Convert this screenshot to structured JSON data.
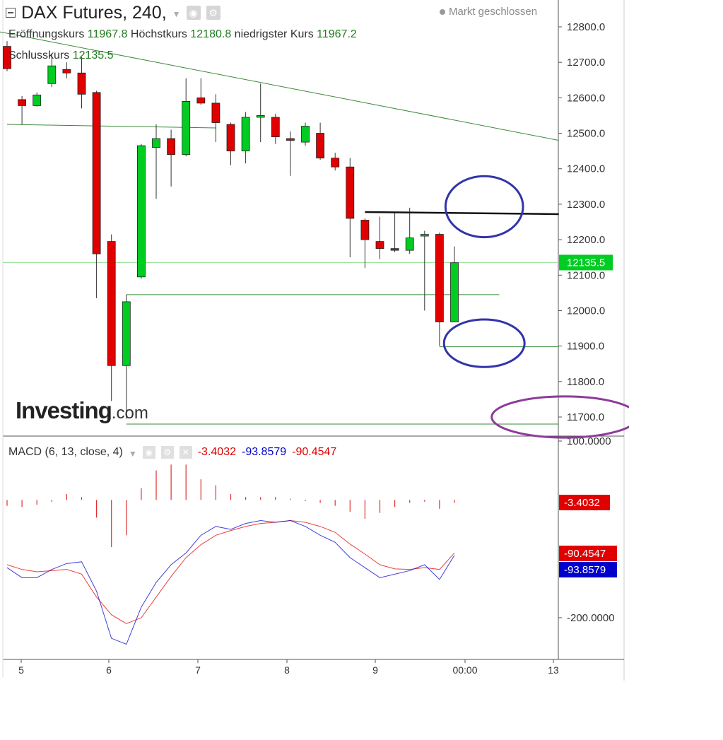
{
  "header": {
    "symbol_title": "DAX Futures, 240,",
    "market_status": "Markt geschlossen",
    "open_label": "Eröffnungskurs",
    "open_value": "11967.8",
    "high_label": "Höchstkurs",
    "high_value": "12180.8",
    "low_label": "niedrigster Kurs",
    "low_value": "11967.2",
    "close_label": "Schlusskurs",
    "close_value": "12135.5"
  },
  "macd_header": {
    "label": "MACD (6, 13, close, 4)",
    "value_1": "-3.4032",
    "value_2": "-93.8579",
    "value_3": "-90.4547"
  },
  "logo": {
    "text": "Investing",
    "suffix": ".com"
  },
  "icons": [
    "collapse-icon",
    "chevron-down-icon",
    "eye-icon",
    "gear-icon",
    "close-icon"
  ],
  "colors": {
    "up": "#00cc22",
    "down": "#e00000",
    "price_badge": "#00cc22",
    "macd_line": "#0000cc",
    "signal_line": "#e00000",
    "trendline": "#3a8a3a",
    "annotation_blue": "#3333aa",
    "annotation_purple": "#8e3b9b"
  },
  "chart_data": [
    {
      "type": "candlestick",
      "title": "DAX Futures, 240,",
      "x_ticks": [
        "5",
        "6",
        "7",
        "8",
        "9",
        "00:00",
        "13"
      ],
      "y_ticks": [
        "12800.0",
        "12700.0",
        "12600.0",
        "12500.0",
        "12400.0",
        "12300.0",
        "12200.0",
        "12100.0",
        "12000.0",
        "11900.0",
        "11800.0",
        "11700.0"
      ],
      "ylim": [
        11640,
        12830
      ],
      "last_price_label": "12135.5",
      "last_price": 12135.5,
      "candles": [
        {
          "x": 0.0,
          "o": 12745,
          "h": 12760,
          "l": 12675,
          "c": 12682
        },
        {
          "x": 1.0,
          "o": 12595,
          "h": 12605,
          "l": 12525,
          "c": 12578
        },
        {
          "x": 2.0,
          "o": 12578,
          "h": 12615,
          "l": 12575,
          "c": 12608
        },
        {
          "x": 3.0,
          "o": 12640,
          "h": 12725,
          "l": 12630,
          "c": 12690
        },
        {
          "x": 4.0,
          "o": 12680,
          "h": 12700,
          "l": 12655,
          "c": 12670
        },
        {
          "x": 5.0,
          "o": 12670,
          "h": 12715,
          "l": 12570,
          "c": 12610
        },
        {
          "x": 6.0,
          "o": 12615,
          "h": 12620,
          "l": 12035,
          "c": 12160
        },
        {
          "x": 7.0,
          "o": 12195,
          "h": 12215,
          "l": 11745,
          "c": 11845
        },
        {
          "x": 8.0,
          "o": 11845,
          "h": 12045,
          "l": 11695,
          "c": 12025
        },
        {
          "x": 9.0,
          "o": 12095,
          "h": 12470,
          "l": 12090,
          "c": 12465
        },
        {
          "x": 10.0,
          "o": 12460,
          "h": 12525,
          "l": 12315,
          "c": 12485
        },
        {
          "x": 11.0,
          "o": 12485,
          "h": 12510,
          "l": 12350,
          "c": 12440
        },
        {
          "x": 12.0,
          "o": 12440,
          "h": 12655,
          "l": 12435,
          "c": 12590
        },
        {
          "x": 13.0,
          "o": 12600,
          "h": 12655,
          "l": 12580,
          "c": 12585
        },
        {
          "x": 14.0,
          "o": 12585,
          "h": 12610,
          "l": 12475,
          "c": 12530
        },
        {
          "x": 15.0,
          "o": 12525,
          "h": 12530,
          "l": 12410,
          "c": 12450
        },
        {
          "x": 16.0,
          "o": 12450,
          "h": 12560,
          "l": 12415,
          "c": 12545
        },
        {
          "x": 17.0,
          "o": 12545,
          "h": 12640,
          "l": 12475,
          "c": 12550
        },
        {
          "x": 18.0,
          "o": 12545,
          "h": 12555,
          "l": 12470,
          "c": 12490
        },
        {
          "x": 19.0,
          "o": 12485,
          "h": 12505,
          "l": 12380,
          "c": 12480
        },
        {
          "x": 20.0,
          "o": 12475,
          "h": 12530,
          "l": 12465,
          "c": 12520
        },
        {
          "x": 21.0,
          "o": 12500,
          "h": 12530,
          "l": 12425,
          "c": 12430
        },
        {
          "x": 22.0,
          "o": 12430,
          "h": 12445,
          "l": 12395,
          "c": 12405
        },
        {
          "x": 23.0,
          "o": 12405,
          "h": 12430,
          "l": 12150,
          "c": 12260
        },
        {
          "x": 24.0,
          "o": 12255,
          "h": 12260,
          "l": 12120,
          "c": 12200
        },
        {
          "x": 25.0,
          "o": 12195,
          "h": 12265,
          "l": 12145,
          "c": 12175
        },
        {
          "x": 26.0,
          "o": 12175,
          "h": 12275,
          "l": 12165,
          "c": 12170
        },
        {
          "x": 27.0,
          "o": 12170,
          "h": 12290,
          "l": 12160,
          "c": 12205
        },
        {
          "x": 28.0,
          "o": 12210,
          "h": 12225,
          "l": 12000,
          "c": 12215
        },
        {
          "x": 29.0,
          "o": 12215,
          "h": 12220,
          "l": 11900,
          "c": 11968
        },
        {
          "x": 30.0,
          "o": 11968,
          "h": 12181,
          "l": 11967,
          "c": 12135
        }
      ],
      "annotations": {
        "trend_lines": [
          {
            "x1": -1.0,
            "y1": 12790,
            "x2": 37.0,
            "y2": 12480
          },
          {
            "x1": 0.0,
            "y1": 12525,
            "x2": 14.0,
            "y2": 12515
          },
          {
            "x1": 8.0,
            "y1": 12045,
            "x2": 33.0,
            "y2": 12045
          },
          {
            "x1": 29.0,
            "y1": 11898,
            "x2": 37.0,
            "y2": 11898
          },
          {
            "x1": 8.0,
            "y1": 11680,
            "x2": 37.0,
            "y2": 11680
          }
        ],
        "resistance_line": {
          "x1": 24.0,
          "y1": 12278,
          "x2": 37.0,
          "y2": 12272
        },
        "ellipses": [
          {
            "cx": 32.0,
            "cy": 12293,
            "rx": 2.6,
            "ry": 86,
            "color": "blue"
          },
          {
            "cx": 32.0,
            "cy": 11908,
            "rx": 2.7,
            "ry": 67,
            "color": "blue"
          },
          {
            "cx": 37.4,
            "cy": 11700,
            "rx": 4.9,
            "ry": 58,
            "color": "purple"
          }
        ]
      }
    },
    {
      "type": "line",
      "title": "MACD (6, 13, close, 4)",
      "y_ticks": [
        "100.0000",
        "-200.0000"
      ],
      "ylim": [
        -222,
        104
      ],
      "value_labels": [
        "-3.4032",
        "-90.4547",
        "-93.8579"
      ],
      "histogram": [
        -10,
        -12,
        -8,
        -3,
        10,
        5,
        -30,
        -80,
        -60,
        20,
        50,
        60,
        60,
        35,
        25,
        10,
        5,
        5,
        5,
        2,
        -2,
        -5,
        -10,
        -20,
        -32,
        -22,
        -12,
        -5,
        -3,
        -15,
        -5
      ],
      "macd_line": [
        -115,
        -132,
        -132,
        -118,
        -108,
        -105,
        -155,
        -235,
        -245,
        -182,
        -140,
        -110,
        -90,
        -60,
        -45,
        -50,
        -40,
        -35,
        -38,
        -35,
        -45,
        -60,
        -72,
        -98,
        -115,
        -132,
        -126,
        -120,
        -110,
        -135,
        -94
      ],
      "signal_line": [
        -110,
        -118,
        -122,
        -120,
        -118,
        -126,
        -165,
        -195,
        -210,
        -200,
        -165,
        -130,
        -98,
        -76,
        -60,
        -52,
        -45,
        -40,
        -38,
        -35,
        -38,
        -45,
        -55,
        -75,
        -92,
        -110,
        -117,
        -118,
        -115,
        -118,
        -90
      ]
    }
  ]
}
